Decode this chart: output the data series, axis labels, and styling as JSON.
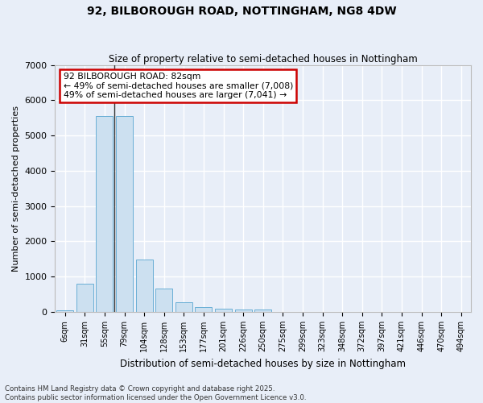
{
  "title": "92, BILBOROUGH ROAD, NOTTINGHAM, NG8 4DW",
  "subtitle": "Size of property relative to semi-detached houses in Nottingham",
  "xlabel": "Distribution of semi-detached houses by size in Nottingham",
  "ylabel": "Number of semi-detached properties",
  "categories": [
    "6sqm",
    "31sqm",
    "55sqm",
    "79sqm",
    "104sqm",
    "128sqm",
    "153sqm",
    "177sqm",
    "201sqm",
    "226sqm",
    "250sqm",
    "275sqm",
    "299sqm",
    "323sqm",
    "348sqm",
    "372sqm",
    "397sqm",
    "421sqm",
    "446sqm",
    "470sqm",
    "494sqm"
  ],
  "values": [
    50,
    800,
    5550,
    5550,
    1480,
    660,
    280,
    145,
    95,
    70,
    65,
    0,
    0,
    0,
    0,
    0,
    0,
    0,
    0,
    0,
    0
  ],
  "bar_color": "#cce0f0",
  "bar_edge_color": "#6aafd6",
  "annotation_text": "92 BILBOROUGH ROAD: 82sqm\n← 49% of semi-detached houses are smaller (7,008)\n49% of semi-detached houses are larger (7,041) →",
  "annotation_box_color": "#ffffff",
  "annotation_box_edge": "#cc0000",
  "background_color": "#e8eef8",
  "plot_bg_color": "#e8eef8",
  "grid_color": "#ffffff",
  "vline_color": "#333333",
  "ylim": [
    0,
    7000
  ],
  "yticks": [
    0,
    1000,
    2000,
    3000,
    4000,
    5000,
    6000,
    7000
  ],
  "footer_line1": "Contains HM Land Registry data © Crown copyright and database right 2025.",
  "footer_line2": "Contains public sector information licensed under the Open Government Licence v3.0."
}
